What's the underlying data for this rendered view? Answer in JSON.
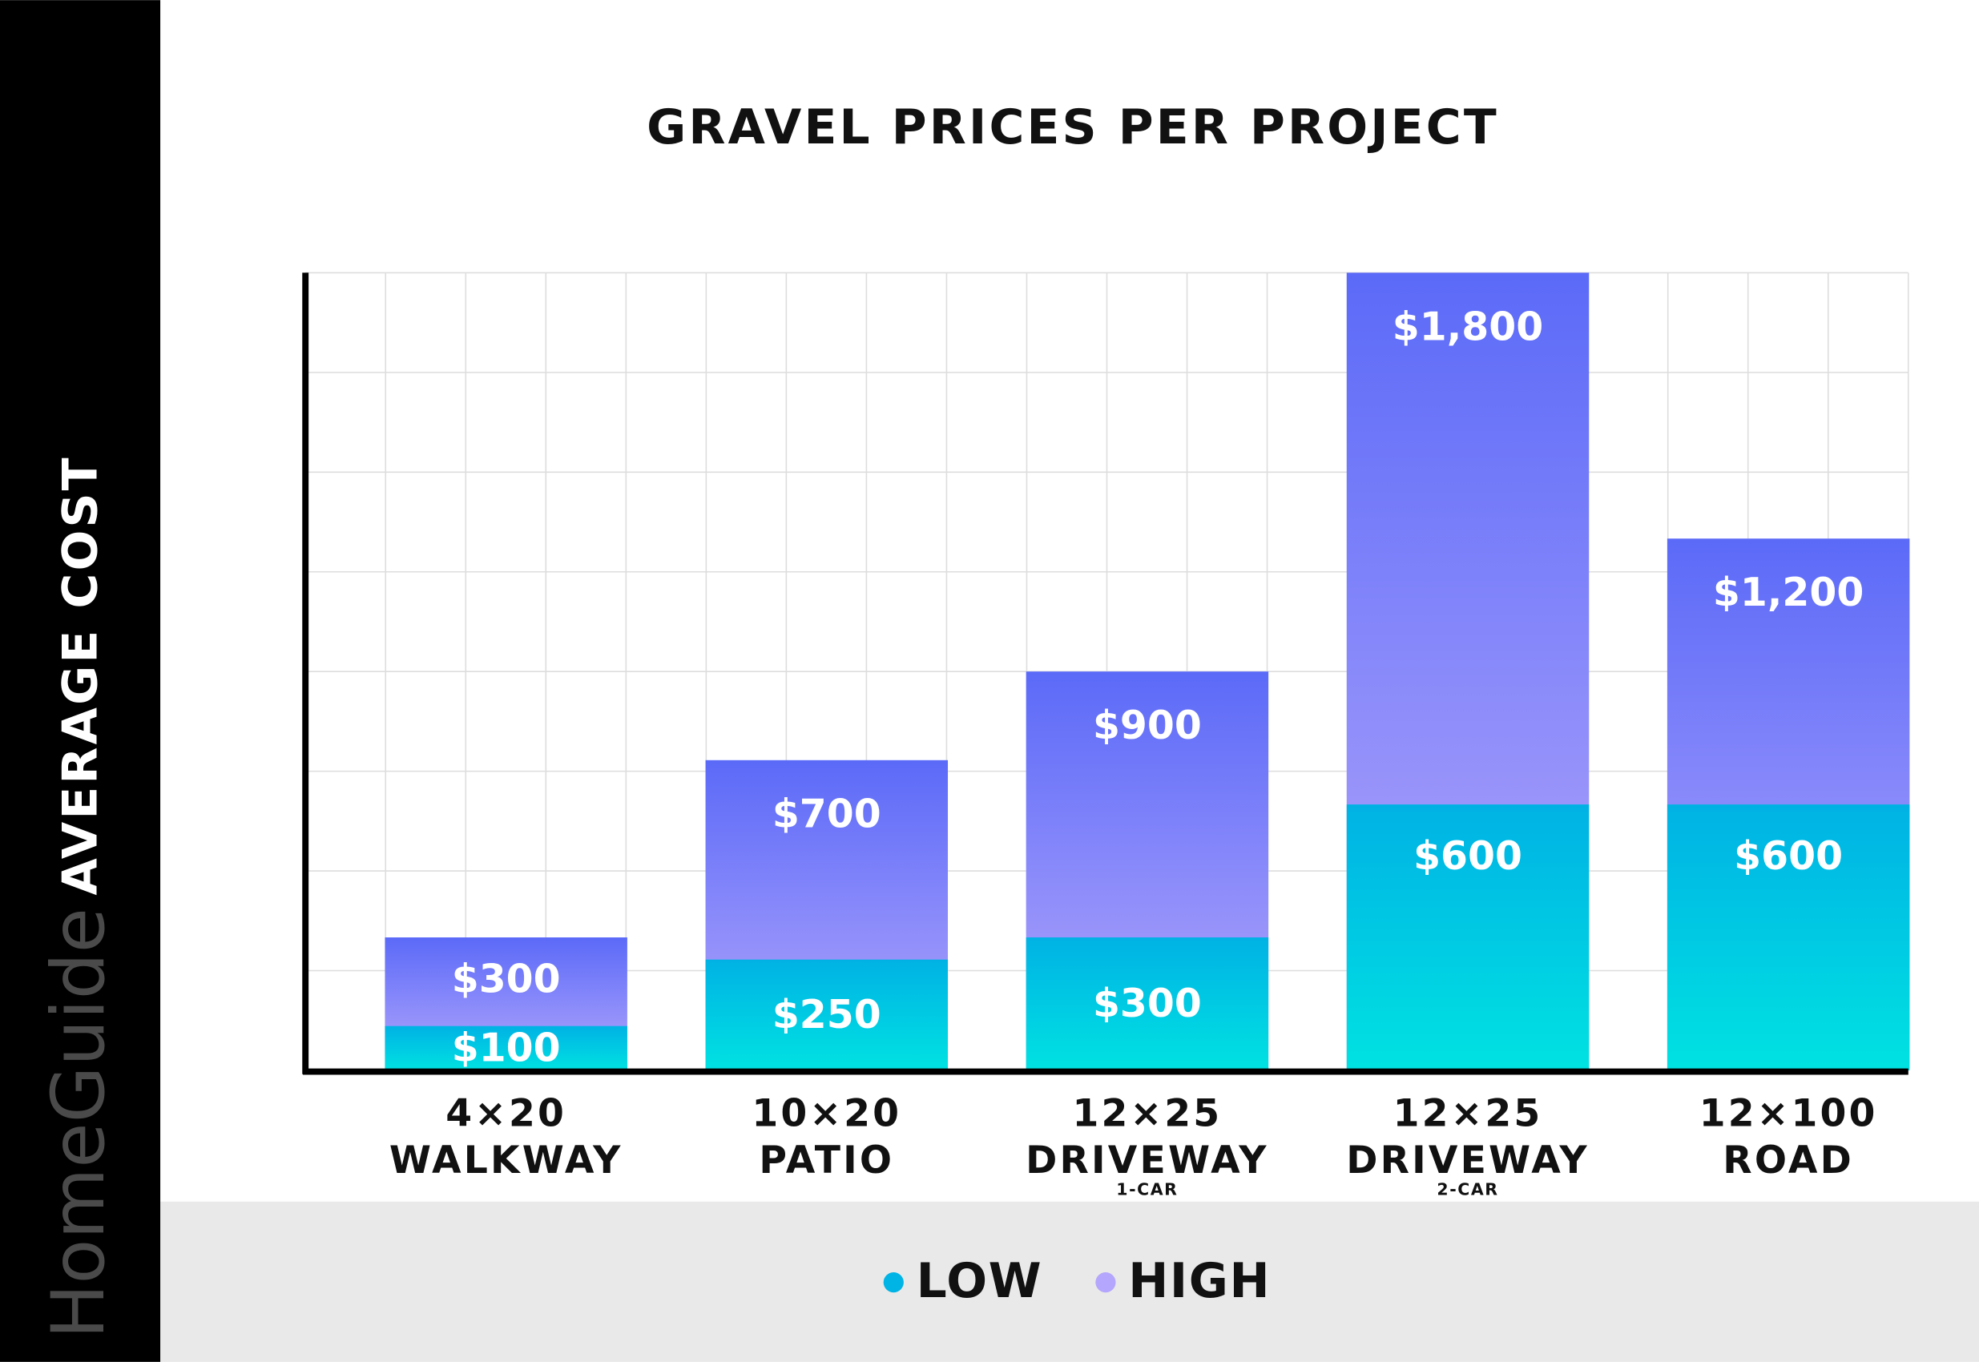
{
  "brand": "HomeGuide",
  "chart_data": {
    "type": "overlap-bar",
    "title": "GRAVEL PRICES PER PROJECT",
    "ylabel": "AVERAGE COST",
    "categories": [
      [
        "4×20",
        "WALKWAY"
      ],
      [
        "10×20",
        "PATIO"
      ],
      [
        "12×25",
        "DRIVEWAY",
        "1-CAR"
      ],
      [
        "12×25",
        "DRIVEWAY",
        "2-CAR"
      ],
      [
        "12×100",
        "ROAD"
      ]
    ],
    "ylim": [
      0,
      1800
    ],
    "grid": true,
    "series": [
      {
        "name": "LOW",
        "color": "#00b4e6",
        "values": [
          100,
          250,
          300,
          600,
          600
        ],
        "value_labels": [
          "$100",
          "$250",
          "$300",
          "$600",
          "$600"
        ]
      },
      {
        "name": "HIGH",
        "color": "#b3a6fc",
        "values": [
          300,
          700,
          900,
          1800,
          1200
        ],
        "value_labels": [
          "$300",
          "$700",
          "$900",
          "$1,800",
          "$1,200"
        ]
      }
    ]
  }
}
